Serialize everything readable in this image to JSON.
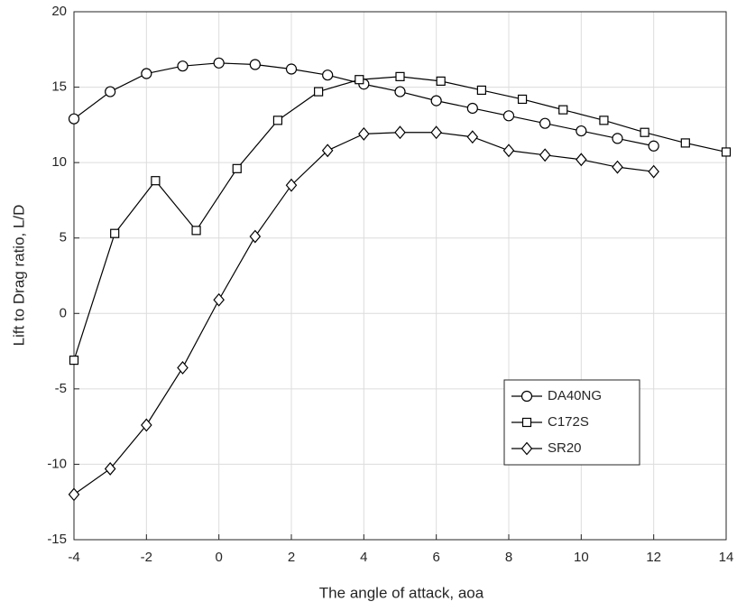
{
  "chart_data": {
    "type": "line",
    "xlabel": "The angle of attack, aoa",
    "ylabel": "Lift to Drag ratio, L/D",
    "xlim": [
      -4,
      14
    ],
    "ylim": [
      -15,
      20
    ],
    "xticks": [
      -4,
      -2,
      0,
      2,
      4,
      6,
      8,
      10,
      12,
      14
    ],
    "yticks": [
      -15,
      -10,
      -5,
      0,
      5,
      10,
      15,
      20
    ],
    "grid": true,
    "legend": "lower right",
    "series": [
      {
        "name": "DA40NG",
        "color": "#000000",
        "marker": "circle",
        "x": [
          -4,
          -3,
          -2,
          -1,
          0,
          1,
          2,
          3,
          4,
          5,
          6,
          7,
          8,
          9,
          10,
          11,
          12
        ],
        "values": [
          12.9,
          14.7,
          15.9,
          16.4,
          16.6,
          16.5,
          16.2,
          15.8,
          15.2,
          14.7,
          14.1,
          13.6,
          13.1,
          12.6,
          12.1,
          11.6,
          11.1
        ]
      },
      {
        "name": "C172S",
        "color": "#000000",
        "marker": "square",
        "x": [
          -4,
          -2.875,
          -1.75,
          -0.625,
          0.5,
          1.625,
          2.75,
          3.875,
          5,
          6.125,
          7.25,
          8.375,
          9.5,
          10.625,
          11.75,
          12.875,
          14
        ],
        "values": [
          -3.1,
          5.3,
          8.8,
          5.5,
          9.6,
          12.8,
          14.7,
          15.5,
          15.7,
          15.4,
          14.8,
          14.2,
          13.5,
          12.8,
          12.0,
          11.3,
          10.7
        ]
      },
      {
        "name": "SR20",
        "color": "#000000",
        "marker": "diamond",
        "x": [
          -4,
          -3,
          -2,
          -1,
          0,
          1,
          2,
          3,
          4,
          5,
          6,
          7,
          8,
          9,
          10,
          11,
          12
        ],
        "values": [
          -12.0,
          -10.3,
          -7.4,
          -3.6,
          0.9,
          5.1,
          8.5,
          10.8,
          11.9,
          12.0,
          12.0,
          11.7,
          10.8,
          10.5,
          10.2,
          9.7,
          9.4
        ]
      }
    ]
  }
}
